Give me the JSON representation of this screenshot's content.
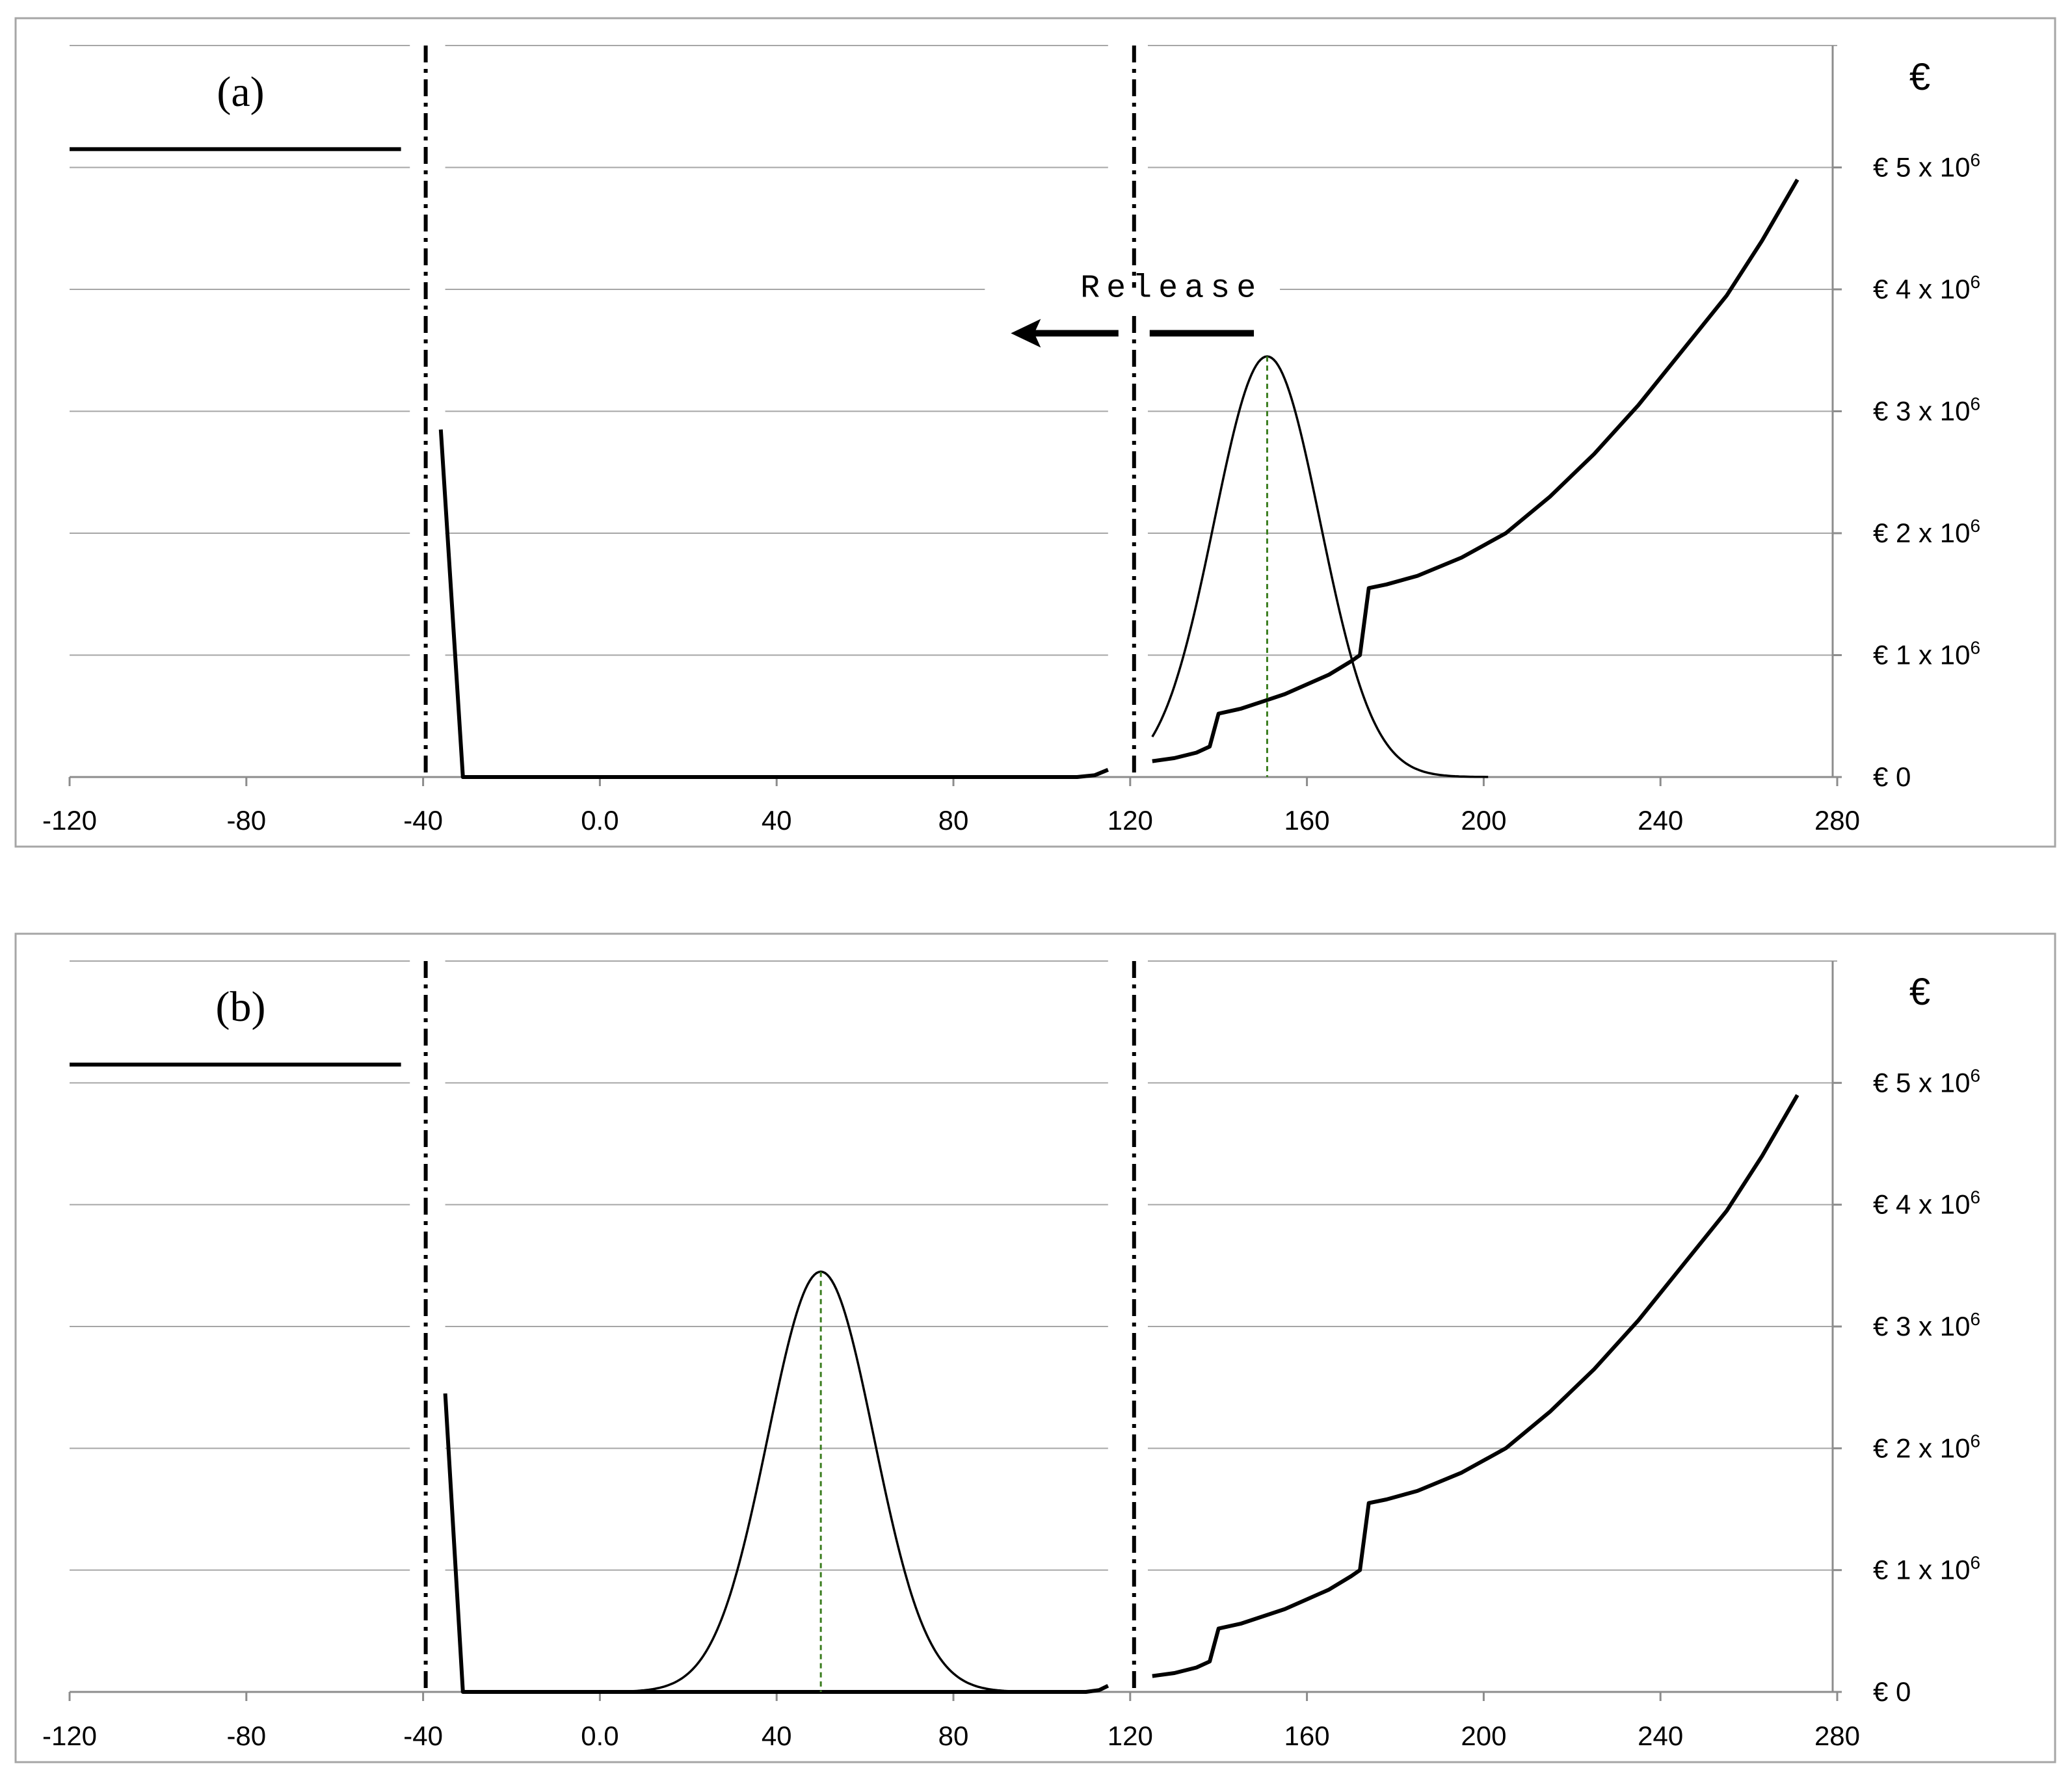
{
  "chart_data": [
    {
      "type": "line",
      "panel_label": "(a)",
      "unit_label": "€",
      "x_ticks": [
        "-120",
        "-80",
        "-40",
        "0.0",
        "40",
        "80",
        "120",
        "160",
        "200",
        "240",
        "280"
      ],
      "xlim": [
        -120,
        280
      ],
      "y_ticks": [
        {
          "base": "€ 0",
          "exp": ""
        },
        {
          "base": "€ 1 x 10",
          "exp": "6"
        },
        {
          "base": "€ 2 x 10",
          "exp": "6"
        },
        {
          "base": "€ 3 x 10",
          "exp": "6"
        },
        {
          "base": "€ 4 x 10",
          "exp": "6"
        },
        {
          "base": "€ 5 x 10",
          "exp": "6"
        }
      ],
      "ylim": [
        0,
        6000000
      ],
      "separators_x": [
        -40,
        120
      ],
      "annotation": {
        "text": "Release",
        "arrow_from": 148,
        "arrow_to": 93,
        "y": 3800000
      },
      "series": [
        {
          "name": "left-level",
          "points": [
            [
              -120,
              5150000
            ],
            [
              -45,
              5150000
            ]
          ]
        },
        {
          "name": "middle-cost",
          "points": [
            [
              -36,
              2850000
            ],
            [
              -31,
              0
            ],
            [
              108,
              0
            ],
            [
              112,
              15000
            ],
            [
              115,
              60000
            ]
          ]
        },
        {
          "name": "right-cost",
          "points": [
            [
              125,
              130000
            ],
            [
              130,
              155000
            ],
            [
              135,
              200000
            ],
            [
              138,
              250000
            ],
            [
              140,
              520000
            ],
            [
              145,
              560000
            ],
            [
              150,
              620000
            ],
            [
              155,
              680000
            ],
            [
              160,
              760000
            ],
            [
              165,
              840000
            ],
            [
              170,
              950000
            ],
            [
              172,
              1000000
            ],
            [
              174,
              1550000
            ],
            [
              178,
              1580000
            ],
            [
              185,
              1650000
            ],
            [
              195,
              1800000
            ],
            [
              205,
              2000000
            ],
            [
              215,
              2300000
            ],
            [
              225,
              2650000
            ],
            [
              235,
              3050000
            ],
            [
              245,
              3500000
            ],
            [
              255,
              3950000
            ],
            [
              263,
              4400000
            ],
            [
              271,
              4900000
            ]
          ]
        },
        {
          "name": "distribution",
          "mean": 151,
          "sd": 12,
          "peak": 3450000,
          "x_range": [
            125,
            201
          ]
        }
      ]
    },
    {
      "type": "line",
      "panel_label": "(b)",
      "unit_label": "€",
      "x_ticks": [
        "-120",
        "-80",
        "-40",
        "0.0",
        "40",
        "80",
        "120",
        "160",
        "200",
        "240",
        "280"
      ],
      "xlim": [
        -120,
        280
      ],
      "y_ticks": [
        {
          "base": "€ 0",
          "exp": ""
        },
        {
          "base": "€ 1 x 10",
          "exp": "6"
        },
        {
          "base": "€ 2 x 10",
          "exp": "6"
        },
        {
          "base": "€ 3 x 10",
          "exp": "6"
        },
        {
          "base": "€ 4 x 10",
          "exp": "6"
        },
        {
          "base": "€ 5 x 10",
          "exp": "6"
        }
      ],
      "ylim": [
        0,
        6000000
      ],
      "separators_x": [
        -40,
        120
      ],
      "series": [
        {
          "name": "left-level",
          "points": [
            [
              -120,
              5150000
            ],
            [
              -45,
              5150000
            ]
          ]
        },
        {
          "name": "middle-cost",
          "points": [
            [
              -35,
              2450000
            ],
            [
              -31,
              0
            ],
            [
              110,
              0
            ],
            [
              113,
              15000
            ],
            [
              115,
              50000
            ]
          ]
        },
        {
          "name": "right-cost",
          "points": [
            [
              125,
              130000
            ],
            [
              130,
              155000
            ],
            [
              135,
              200000
            ],
            [
              138,
              250000
            ],
            [
              140,
              520000
            ],
            [
              145,
              560000
            ],
            [
              150,
              620000
            ],
            [
              155,
              680000
            ],
            [
              160,
              760000
            ],
            [
              165,
              840000
            ],
            [
              170,
              950000
            ],
            [
              172,
              1000000
            ],
            [
              174,
              1550000
            ],
            [
              178,
              1580000
            ],
            [
              185,
              1650000
            ],
            [
              195,
              1800000
            ],
            [
              205,
              2000000
            ],
            [
              215,
              2300000
            ],
            [
              225,
              2650000
            ],
            [
              235,
              3050000
            ],
            [
              245,
              3500000
            ],
            [
              255,
              3950000
            ],
            [
              263,
              4400000
            ],
            [
              271,
              4900000
            ]
          ]
        },
        {
          "name": "distribution",
          "mean": 50,
          "sd": 12,
          "peak": 3450000,
          "x_range": [
            0,
            110
          ]
        }
      ]
    }
  ]
}
